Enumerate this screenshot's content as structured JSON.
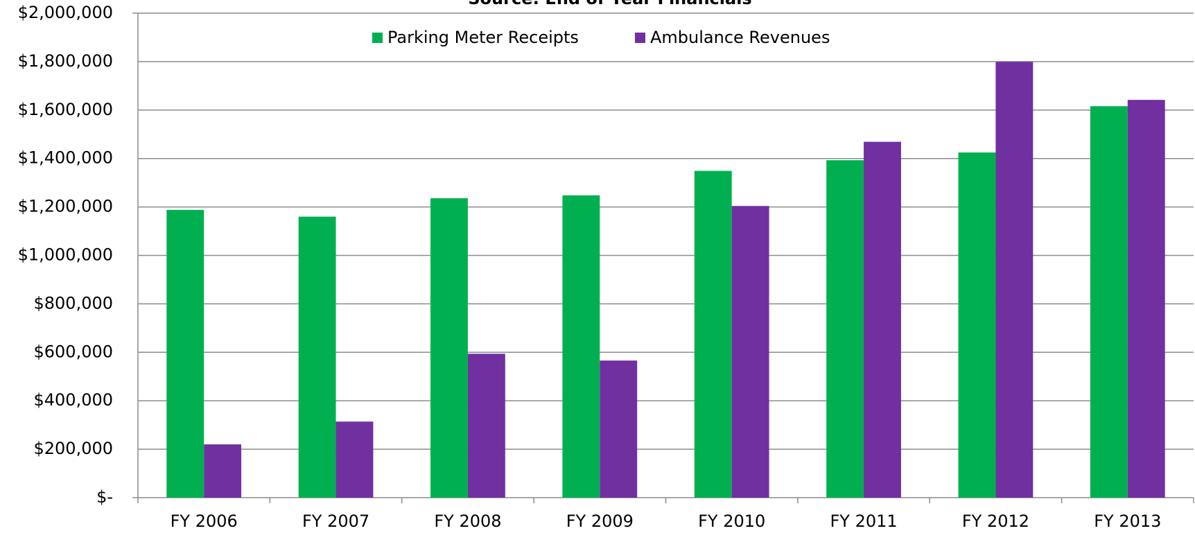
{
  "chart_data": {
    "type": "bar",
    "title": "Source:  End of Year Financials",
    "categories": [
      "FY 2006",
      "FY 2007",
      "FY 2008",
      "FY 2009",
      "FY 2010",
      "FY 2011",
      "FY 2012",
      "FY 2013"
    ],
    "series": [
      {
        "name": "Parking Meter Receipts",
        "color": "#00b050",
        "values": [
          1188000,
          1160000,
          1236000,
          1248000,
          1349000,
          1393000,
          1425000,
          1616000
        ]
      },
      {
        "name": "Ambulance Revenues",
        "color": "#7030a0",
        "values": [
          220000,
          314000,
          594000,
          566000,
          1204000,
          1469000,
          1799000,
          1642000
        ]
      }
    ],
    "ylim": [
      0,
      2000000
    ],
    "yticks": [
      {
        "value": 0,
        "label": "$-"
      },
      {
        "value": 200000,
        "label": "$200,000"
      },
      {
        "value": 400000,
        "label": "$400,000"
      },
      {
        "value": 600000,
        "label": "$600,000"
      },
      {
        "value": 800000,
        "label": "$800,000"
      },
      {
        "value": 1000000,
        "label": "$1,000,000"
      },
      {
        "value": 1200000,
        "label": "$1,200,000"
      },
      {
        "value": 1400000,
        "label": "$1,400,000"
      },
      {
        "value": 1600000,
        "label": "$1,600,000"
      },
      {
        "value": 1800000,
        "label": "$1,800,000"
      },
      {
        "value": 2000000,
        "label": "$2,000,000"
      }
    ],
    "grid": true,
    "legend": "top"
  }
}
